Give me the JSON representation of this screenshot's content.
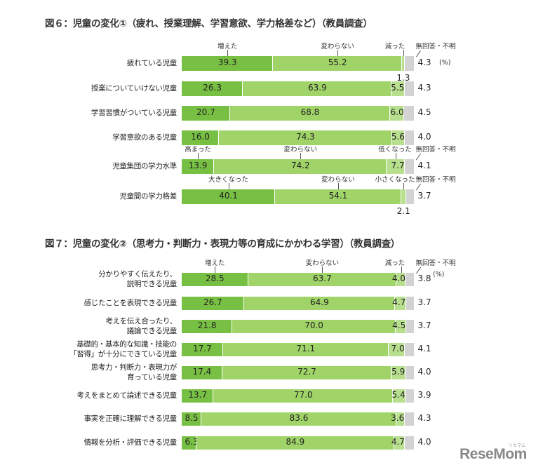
{
  "colors": {
    "increase": "#78c043",
    "same": "#a0d468",
    "decrease": "#b8df8e",
    "na": "#d3d3d3"
  },
  "unit": "(%)",
  "chart_data": [
    {
      "type": "bar",
      "stacked": true,
      "orientation": "horizontal",
      "title": "図６：児童の変化①（疲れ、授業理解、学習意欲、学力格差など）（教員調査）",
      "xlim": [
        0,
        100
      ],
      "categories": [
        "疲れている児童",
        "授業についていけない児童",
        "学習習慣がついている児童",
        "学習意欲のある児童",
        "児童集団の学力水準",
        "児童間の学力格差"
      ],
      "legend_groups": [
        {
          "row": 0,
          "labels": [
            "増えた",
            "変わらない",
            "減った",
            "無回答・不明"
          ]
        },
        {
          "row": 4,
          "labels": [
            "高まった",
            "変わらない",
            "低くなった",
            "無回答・不明"
          ]
        },
        {
          "row": 5,
          "labels": [
            "大きくなった",
            "変わらない",
            "小さくなった",
            "無回答・不明"
          ]
        }
      ],
      "series": [
        {
          "name": "増えた/高まった/大きくなった",
          "values": [
            39.3,
            26.3,
            20.7,
            16.0,
            13.9,
            40.1
          ]
        },
        {
          "name": "変わらない",
          "values": [
            55.2,
            63.9,
            68.8,
            74.3,
            74.2,
            54.1
          ]
        },
        {
          "name": "減った/低くなった/小さくなった",
          "values": [
            1.3,
            5.5,
            6.0,
            5.6,
            7.7,
            2.1
          ]
        },
        {
          "name": "無回答・不明",
          "values": [
            4.3,
            4.3,
            4.5,
            4.0,
            4.1,
            3.7
          ]
        }
      ],
      "labels_text": [
        [
          "39.3",
          "55.2",
          "1.3",
          "4.3"
        ],
        [
          "26.3",
          "63.9",
          "5.5",
          "4.3"
        ],
        [
          "20.7",
          "68.8",
          "6.0",
          "4.5"
        ],
        [
          "16.0",
          "74.3",
          "5.6",
          "4.0"
        ],
        [
          "13.9",
          "74.2",
          "7.7",
          "4.1"
        ],
        [
          "40.1",
          "54.1",
          "2.1",
          "3.7"
        ]
      ]
    },
    {
      "type": "bar",
      "stacked": true,
      "orientation": "horizontal",
      "title": "図７：児童の変化②（思考力・判断力・表現力等の育成にかかわる学習）（教員調査）",
      "xlim": [
        0,
        100
      ],
      "categories": [
        "分かりやすく伝えたり、\n説明できる児童",
        "感じたことを表現できる児童",
        "考えを伝え合ったり、\n議論できる児童",
        "基礎的・基本的な知識・技能の\n「習得」が十分にできている児童",
        "思考力・判断力・表現力が\n育っている児童",
        "考えをまとめて論述できる児童",
        "事実を正確に理解できる児童",
        "情報を分析・評価できる児童"
      ],
      "legend_groups": [
        {
          "row": 0,
          "labels": [
            "増えた",
            "変わらない",
            "減った",
            "無回答・不明"
          ]
        }
      ],
      "series": [
        {
          "name": "増えた",
          "values": [
            28.5,
            26.7,
            21.8,
            17.7,
            17.4,
            13.7,
            8.5,
            6.3
          ]
        },
        {
          "name": "変わらない",
          "values": [
            63.7,
            64.9,
            70.0,
            71.1,
            72.7,
            77.0,
            83.6,
            84.9
          ]
        },
        {
          "name": "減った",
          "values": [
            4.0,
            4.7,
            4.5,
            7.0,
            5.9,
            5.4,
            3.6,
            4.7
          ]
        },
        {
          "name": "無回答・不明",
          "values": [
            3.8,
            3.7,
            3.7,
            4.1,
            4.0,
            3.9,
            4.3,
            4.0
          ]
        }
      ],
      "labels_text": [
        [
          "28.5",
          "63.7",
          "4.0",
          "3.8"
        ],
        [
          "26.7",
          "64.9",
          "4.7",
          "3.7"
        ],
        [
          "21.8",
          "70.0",
          "4.5",
          "3.7"
        ],
        [
          "17.7",
          "71.1",
          "7.0",
          "4.1"
        ],
        [
          "17.4",
          "72.7",
          "5.9",
          "4.0"
        ],
        [
          "13.7",
          "77.0",
          "5.4",
          "3.9"
        ],
        [
          "8.5",
          "83.6",
          "3.6",
          "4.3"
        ],
        [
          "6.3",
          "84.9",
          "4.7",
          "4.0"
        ]
      ]
    }
  ],
  "logo": {
    "text": "ReseMom",
    "sub": "リセマム"
  }
}
